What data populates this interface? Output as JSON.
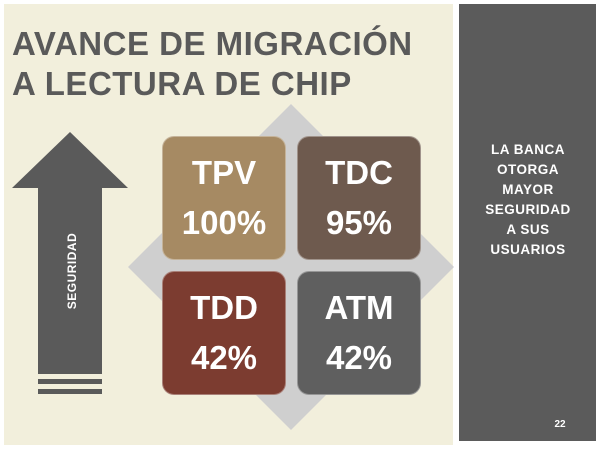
{
  "slide": {
    "title_lines": [
      "AVANCE DE MIGRACIÓN",
      "A LECTURA DE CHIP"
    ],
    "arrow_label": "SEGURIDAD",
    "tiles": [
      {
        "name": "TPV",
        "percent": "100%"
      },
      {
        "name": "TDC",
        "percent": "95%"
      },
      {
        "name": "TDD",
        "percent": "42%"
      },
      {
        "name": "ATM",
        "percent": "42%"
      }
    ],
    "side_text_lines": [
      "LA BANCA",
      "OTORGA",
      "MAYOR",
      "SEGURIDAD",
      "A SUS",
      "USUARIOS"
    ],
    "page_number": "22"
  },
  "colors": {
    "background": "#f2efdc",
    "title": "#5a5a5a",
    "sidebar": "#5b5b5b",
    "arrow": "#5a5a5a",
    "diamond": "#cfcfcf",
    "tpv": "#a68a63",
    "tdc": "#6e5a4e",
    "tdd": "#7c3c30",
    "atm": "#5f5f5f"
  }
}
